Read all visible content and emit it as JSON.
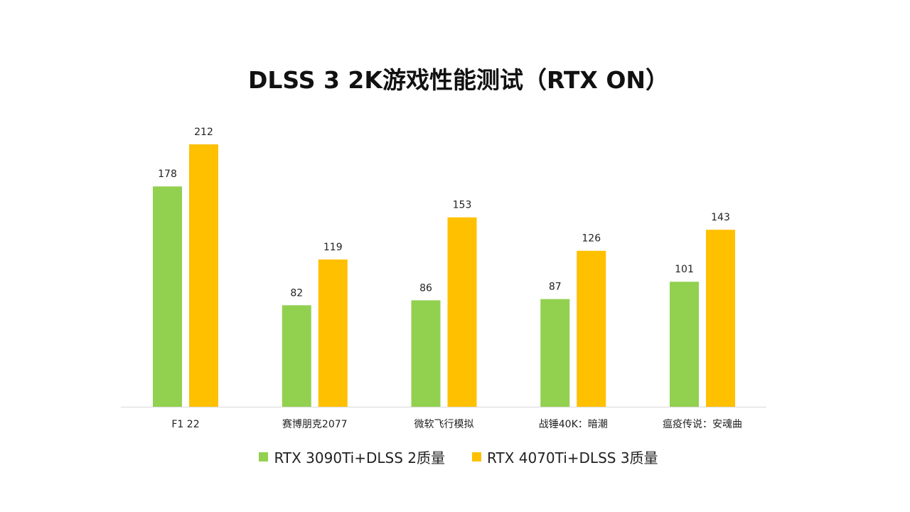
{
  "chart_data": {
    "type": "bar",
    "title": "DLSS 3  2K游戏性能测试（RTX ON）",
    "xlabel": "",
    "ylabel": "",
    "categories": [
      "F1 22",
      "赛博朋克2077",
      "微软飞行模拟",
      "战锤40K：暗潮",
      "瘟疫传说：安魂曲"
    ],
    "series": [
      {
        "name": "RTX 3090Ti+DLSS 2质量",
        "color": "#92d050",
        "values": [
          178,
          82,
          86,
          87,
          101
        ]
      },
      {
        "name": "RTX 4070Ti+DLSS 3质量",
        "color": "#ffc000",
        "values": [
          212,
          119,
          153,
          126,
          143
        ]
      }
    ],
    "ylim": [
      0,
      212
    ],
    "grid": false,
    "legend_position": "bottom",
    "data_labels": true
  }
}
